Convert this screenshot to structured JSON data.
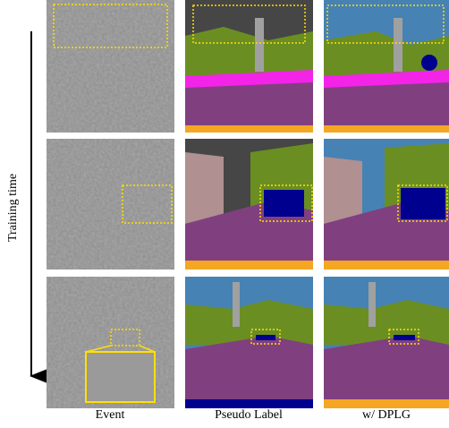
{
  "labels": {
    "y_axis": "Training time",
    "columns": [
      "Event",
      "Pseudo Label",
      "w/ DPLG"
    ]
  }
}
